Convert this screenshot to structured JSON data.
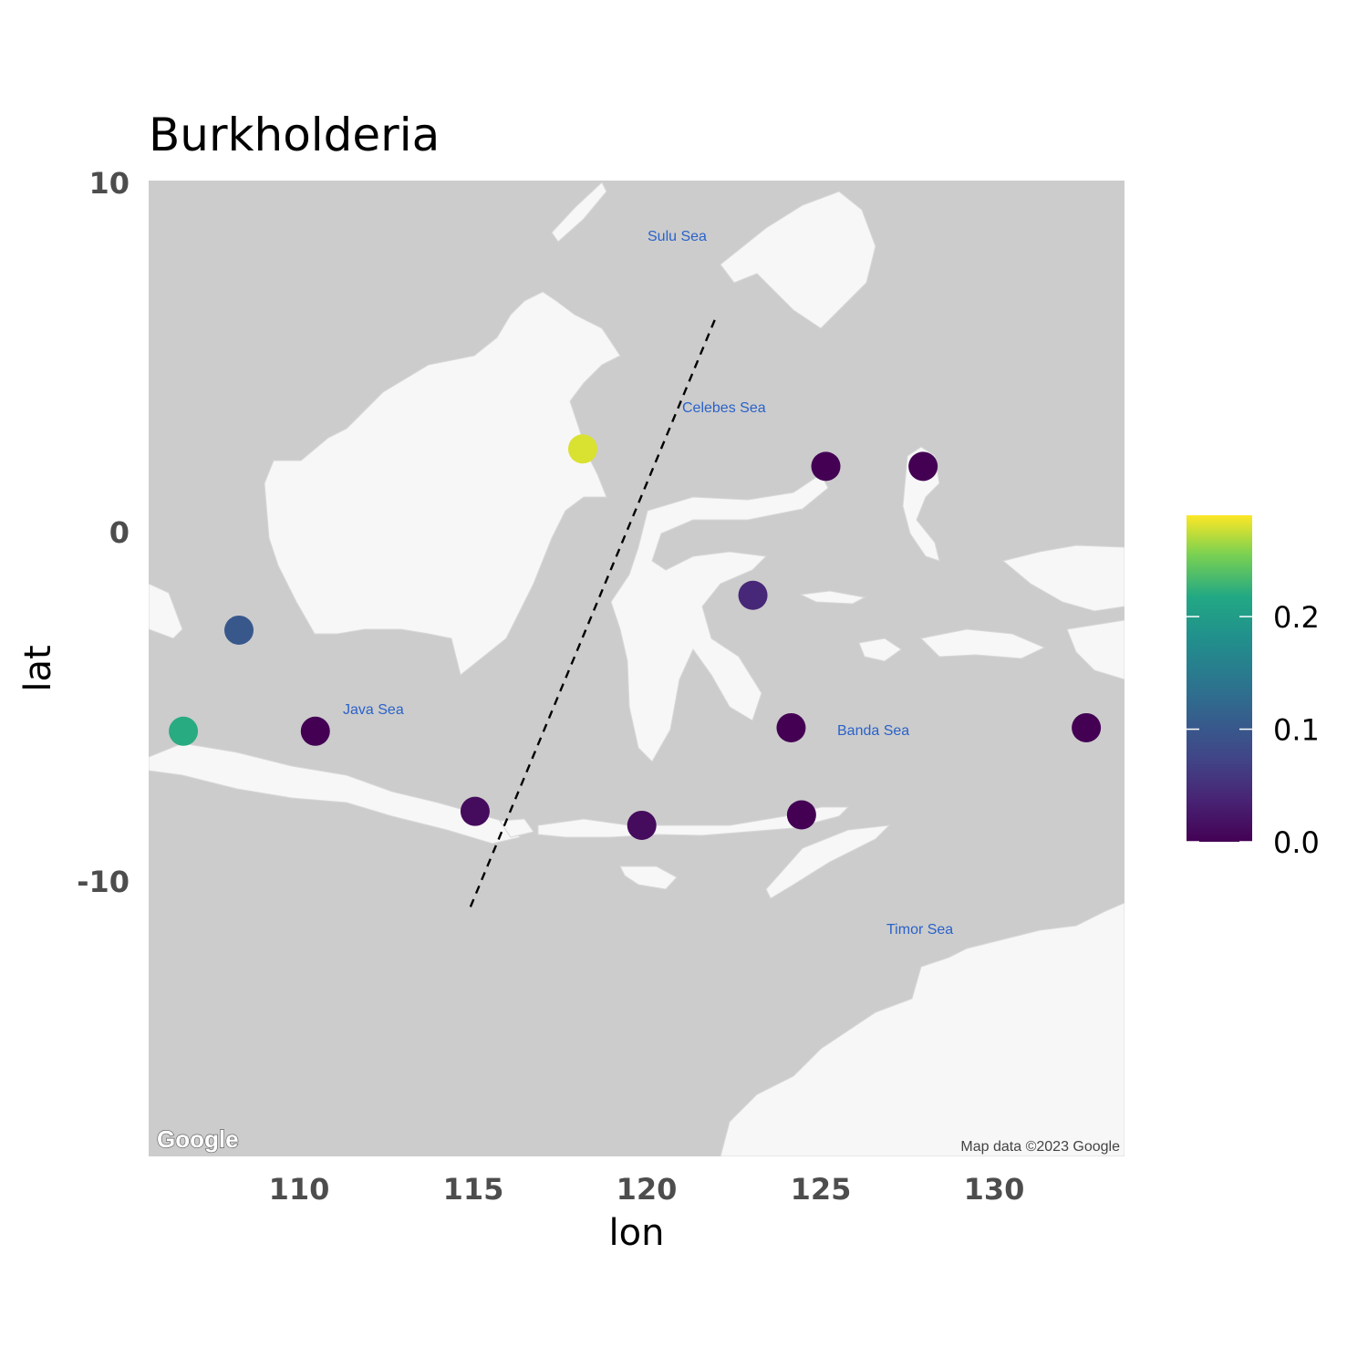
{
  "chart_data": {
    "type": "scatter",
    "title": "Burkholderia",
    "xlabel": "lon",
    "ylabel": "lat",
    "xlim": [
      105.7,
      133.8
    ],
    "ylim": [
      -18,
      10
    ],
    "x_ticks": [
      "110",
      "115",
      "120",
      "125",
      "130"
    ],
    "y_ticks": [
      "10",
      "0",
      "-10"
    ],
    "points": [
      {
        "lon": 118.2,
        "lat": 2.3,
        "value": 0.28
      },
      {
        "lon": 108.3,
        "lat": -2.9,
        "value": 0.1
      },
      {
        "lon": 106.7,
        "lat": -5.8,
        "value": 0.22
      },
      {
        "lon": 110.5,
        "lat": -5.8,
        "value": 0.0
      },
      {
        "lon": 115.1,
        "lat": -8.1,
        "value": 0.01
      },
      {
        "lon": 119.9,
        "lat": -8.5,
        "value": 0.01
      },
      {
        "lon": 124.2,
        "lat": -5.7,
        "value": 0.0
      },
      {
        "lon": 124.5,
        "lat": -8.2,
        "value": 0.0
      },
      {
        "lon": 123.1,
        "lat": -1.9,
        "value": 0.04
      },
      {
        "lon": 125.2,
        "lat": 1.8,
        "value": 0.0
      },
      {
        "lon": 128.0,
        "lat": 1.8,
        "value": 0.0
      },
      {
        "lon": 132.7,
        "lat": -5.7,
        "value": 0.0
      }
    ],
    "wallace_line": [
      {
        "lon": 122.0,
        "lat": 6.0
      },
      {
        "lon": 114.9,
        "lat": -11.0
      }
    ],
    "legend": {
      "position": "right",
      "ticks": [
        "0.0",
        "0.1",
        "0.2"
      ],
      "tick_values": [
        0.0,
        0.1,
        0.2
      ],
      "range": [
        0.0,
        0.29
      ],
      "colormap": "viridis"
    },
    "grid": false
  },
  "map": {
    "sea_labels": [
      "Sulu Sea",
      "Celebes Sea",
      "Java Sea",
      "Banda Sea",
      "Timor Sea"
    ],
    "attribution": "Map data ©2023 Google",
    "logo": "Google",
    "colors": {
      "water": "#cccccc",
      "land": "#f7f7f7",
      "sea_label": "#2a62c9"
    }
  }
}
